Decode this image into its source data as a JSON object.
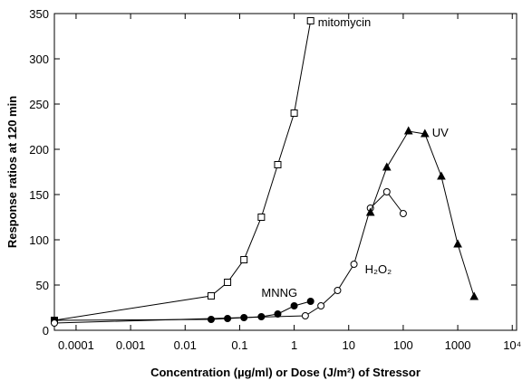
{
  "chart_data": {
    "type": "line",
    "xlabel": "Concentration (µg/ml) or Dose (J/m²) of Stressor",
    "ylabel": "Response ratios at 120 min",
    "xscale": "log",
    "xlim": [
      4e-05,
      12000
    ],
    "xticks": [
      0.0001,
      0.001,
      0.01,
      0.1,
      1,
      10,
      100,
      1000,
      {
        "value": 10000,
        "label": "10⁴"
      }
    ],
    "ylim": [
      0,
      350
    ],
    "yticks": [
      0,
      50,
      100,
      150,
      200,
      250,
      300,
      350
    ],
    "series": [
      {
        "name": "mitomycin",
        "color": "#000000",
        "marker": "square-open",
        "x": [
          4e-05,
          0.03,
          0.06,
          0.12,
          0.25,
          0.5,
          1,
          2
        ],
        "values": [
          11,
          38,
          53,
          78,
          125,
          183,
          240,
          342
        ]
      },
      {
        "name": "MNNG",
        "color": "#000000",
        "marker": "circle-filled",
        "x": [
          4e-05,
          0.03,
          0.06,
          0.12,
          0.25,
          0.5,
          1,
          2
        ],
        "values": [
          11,
          12,
          13,
          14,
          15,
          18,
          27,
          32
        ]
      },
      {
        "name": "H₂O₂",
        "color": "#000000",
        "marker": "circle-open",
        "x": [
          4e-05,
          1.6,
          3.1,
          6.25,
          12.5,
          25,
          50,
          100
        ],
        "values": [
          8,
          16,
          27,
          44,
          73,
          135,
          153,
          129
        ]
      },
      {
        "name": "UV",
        "color": "#000000",
        "marker": "triangle-filled",
        "x": [
          25,
          50,
          125,
          250,
          500,
          1000,
          2000
        ],
        "values": [
          130,
          180,
          220,
          217,
          170,
          95,
          37
        ]
      }
    ]
  }
}
